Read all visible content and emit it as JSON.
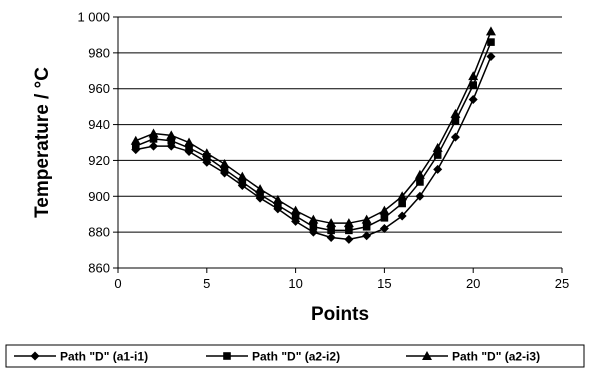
{
  "chart_data": {
    "type": "line",
    "title": "",
    "xlabel": "Points",
    "ylabel": "Temperature / °C",
    "xlim": [
      0,
      25
    ],
    "ylim": [
      860,
      1000
    ],
    "xticks": [
      0,
      5,
      10,
      15,
      20,
      25
    ],
    "yticks": [
      860,
      880,
      900,
      920,
      940,
      960,
      980,
      1000
    ],
    "xtick_labels": [
      "0",
      "5",
      "10",
      "15",
      "20",
      "25"
    ],
    "ytick_labels": [
      "860",
      "880",
      "900",
      "920",
      "940",
      "960",
      "980",
      "1 000"
    ],
    "grid": "horizontal",
    "legend_position": "bottom",
    "x": [
      1,
      2,
      3,
      4,
      5,
      6,
      7,
      8,
      9,
      10,
      11,
      12,
      13,
      14,
      15,
      16,
      17,
      18,
      19,
      20,
      21
    ],
    "series": [
      {
        "name": "Path \"D\" (a1-i1)",
        "marker": "diamond",
        "values": [
          926,
          928,
          928,
          925,
          919,
          913,
          906,
          899,
          893,
          886,
          880,
          877,
          876,
          878,
          882,
          889,
          900,
          915,
          933,
          954,
          978
        ]
      },
      {
        "name": "Path \"D\" (a2-i2)",
        "marker": "square",
        "values": [
          928,
          932,
          931,
          927,
          922,
          915,
          908,
          901,
          895,
          889,
          883,
          881,
          881,
          883,
          888,
          896,
          908,
          923,
          942,
          962,
          986
        ]
      },
      {
        "name": "Path \"D\" (a2-i3)",
        "marker": "triangle",
        "values": [
          931,
          935,
          934,
          930,
          924,
          918,
          911,
          904,
          898,
          892,
          887,
          885,
          885,
          887,
          892,
          900,
          912,
          927,
          946,
          967,
          992
        ]
      }
    ]
  }
}
